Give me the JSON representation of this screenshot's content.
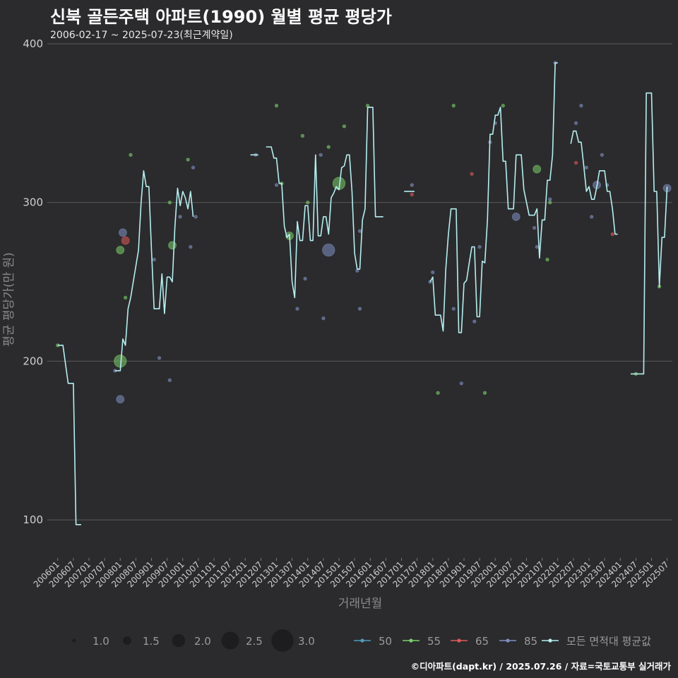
{
  "header": {
    "title": "신북 골든주택 아파트(1990) 월별 평균 평당가",
    "subtitle": "2006-02-17 ~ 2025-07-23(최근계약일)"
  },
  "caption": "©디아파트(dapt.kr) / 2025.07.26 / 자료=국토교통부 실거래가",
  "colors": {
    "background": "#2b2b2d",
    "grid": "#5a5a5a",
    "avg_line": "#b5eef0",
    "s50": "#4f9bbd",
    "s55": "#7bcf6a",
    "s65": "#e05a5a",
    "s85": "#7f8fc2"
  },
  "chart_data": {
    "type": "line",
    "title": "신북 골든주택 아파트(1990) 월별 평균 평당가",
    "xlabel": "거래년월",
    "ylabel": "평균 평당가(만 원)",
    "ylim": [
      76,
      400
    ],
    "yticks": [
      100,
      200,
      300,
      400
    ],
    "xlim_index": [
      -4,
      236
    ],
    "xtick_labels": [
      "200601",
      "200607",
      "200701",
      "200707",
      "200801",
      "200807",
      "200901",
      "200907",
      "201001",
      "201007",
      "201101",
      "201107",
      "201201",
      "201207",
      "201301",
      "201307",
      "201401",
      "201407",
      "201501",
      "201507",
      "201601",
      "201607",
      "201701",
      "201707",
      "201801",
      "201807",
      "201901",
      "201907",
      "202001",
      "202007",
      "202101",
      "202107",
      "202201",
      "202207",
      "202301",
      "202307",
      "202401",
      "202407",
      "202501",
      "202507"
    ],
    "avg_line_segments": [
      [
        [
          0,
          210
        ],
        [
          2,
          210
        ],
        [
          4,
          186
        ],
        [
          6,
          186
        ],
        [
          7,
          97
        ],
        [
          9,
          97
        ]
      ],
      [
        [
          22,
          194
        ],
        [
          24,
          194
        ],
        [
          25,
          214
        ],
        [
          26,
          210
        ],
        [
          27,
          233
        ],
        [
          28,
          240
        ],
        [
          29,
          250
        ],
        [
          30,
          260
        ],
        [
          31,
          270
        ],
        [
          32,
          300
        ],
        [
          33,
          320
        ],
        [
          34,
          310
        ],
        [
          35,
          310
        ],
        [
          36,
          270
        ],
        [
          37,
          233
        ],
        [
          38,
          233
        ],
        [
          39,
          233
        ],
        [
          40,
          255
        ],
        [
          41,
          230
        ],
        [
          42,
          253
        ],
        [
          43,
          253
        ],
        [
          44,
          250
        ],
        [
          45,
          285
        ],
        [
          46,
          309
        ],
        [
          47,
          298
        ],
        [
          48,
          307
        ],
        [
          49,
          303
        ],
        [
          50,
          296
        ],
        [
          51,
          307
        ],
        [
          52,
          291
        ]
      ],
      [
        [
          74,
          330
        ],
        [
          77,
          330
        ]
      ],
      [
        [
          80,
          335
        ],
        [
          82,
          335
        ],
        [
          83,
          328
        ],
        [
          84,
          328
        ],
        [
          85,
          312
        ],
        [
          86,
          312
        ],
        [
          87,
          285
        ],
        [
          88,
          278
        ],
        [
          89,
          280
        ],
        [
          90,
          250
        ],
        [
          91,
          240
        ],
        [
          92,
          288
        ],
        [
          93,
          276
        ],
        [
          94,
          276
        ],
        [
          95,
          298
        ],
        [
          96,
          298
        ],
        [
          97,
          276
        ],
        [
          98,
          276
        ],
        [
          99,
          330
        ],
        [
          100,
          279
        ],
        [
          101,
          279
        ],
        [
          102,
          291
        ],
        [
          103,
          291
        ],
        [
          104,
          280
        ],
        [
          105,
          303
        ],
        [
          106,
          306
        ],
        [
          107,
          310
        ],
        [
          108,
          308
        ],
        [
          109,
          322
        ],
        [
          110,
          323
        ],
        [
          111,
          330
        ],
        [
          112,
          330
        ],
        [
          113,
          307
        ],
        [
          114,
          268
        ],
        [
          115,
          258
        ],
        [
          116,
          258
        ],
        [
          117,
          289
        ],
        [
          118,
          296
        ],
        [
          119,
          360
        ],
        [
          120,
          360
        ],
        [
          121,
          360
        ],
        [
          122,
          291
        ],
        [
          123,
          291
        ],
        [
          124,
          291
        ],
        [
          125,
          291
        ]
      ],
      [
        [
          133,
          307
        ],
        [
          137,
          307
        ]
      ],
      [
        [
          143,
          250
        ],
        [
          144,
          253
        ],
        [
          145,
          229
        ],
        [
          146,
          229
        ],
        [
          147,
          229
        ],
        [
          148,
          219
        ],
        [
          149,
          258
        ],
        [
          150,
          280
        ],
        [
          151,
          296
        ],
        [
          152,
          296
        ],
        [
          153,
          296
        ],
        [
          154,
          218
        ],
        [
          155,
          218
        ],
        [
          156,
          249
        ],
        [
          157,
          251
        ],
        [
          158,
          262
        ],
        [
          159,
          272
        ],
        [
          160,
          272
        ],
        [
          161,
          228
        ],
        [
          162,
          228
        ],
        [
          163,
          263
        ],
        [
          164,
          262
        ],
        [
          165,
          289
        ],
        [
          166,
          343
        ],
        [
          167,
          343
        ],
        [
          168,
          355
        ],
        [
          169,
          355
        ],
        [
          170,
          360
        ],
        [
          171,
          326
        ],
        [
          172,
          326
        ],
        [
          173,
          296
        ],
        [
          174,
          296
        ],
        [
          175,
          296
        ],
        [
          176,
          330
        ],
        [
          177,
          330
        ],
        [
          178,
          330
        ],
        [
          179,
          308
        ],
        [
          180,
          300
        ],
        [
          181,
          292
        ],
        [
          182,
          292
        ],
        [
          183,
          292
        ],
        [
          184,
          296
        ],
        [
          185,
          265
        ],
        [
          186,
          289
        ],
        [
          187,
          289
        ],
        [
          188,
          314
        ],
        [
          189,
          314
        ],
        [
          190,
          330
        ],
        [
          191,
          388
        ],
        [
          192,
          388
        ]
      ],
      [
        [
          197,
          337
        ],
        [
          198,
          345
        ],
        [
          199,
          345
        ],
        [
          200,
          338
        ],
        [
          201,
          338
        ],
        [
          202,
          323
        ],
        [
          203,
          307
        ],
        [
          204,
          310
        ],
        [
          205,
          302
        ],
        [
          206,
          302
        ],
        [
          207,
          310
        ],
        [
          208,
          320
        ],
        [
          209,
          320
        ],
        [
          210,
          320
        ],
        [
          211,
          307
        ],
        [
          212,
          307
        ],
        [
          213,
          296
        ],
        [
          214,
          280
        ],
        [
          215,
          280
        ]
      ],
      [
        [
          220,
          192
        ],
        [
          225,
          192
        ],
        [
          226,
          369
        ],
        [
          228,
          369
        ],
        [
          229,
          307
        ],
        [
          230,
          307
        ],
        [
          231,
          247
        ],
        [
          232,
          278
        ],
        [
          233,
          278
        ],
        [
          234,
          310
        ]
      ]
    ],
    "scatter": [
      {
        "area": 55,
        "i": 0,
        "v": 210,
        "n": 1
      },
      {
        "area": 85,
        "i": 22,
        "v": 194,
        "n": 1
      },
      {
        "area": 55,
        "i": 24,
        "v": 200,
        "n": 2
      },
      {
        "area": 85,
        "i": 24,
        "v": 176,
        "n": 1.5
      },
      {
        "area": 55,
        "i": 24,
        "v": 270,
        "n": 1.5
      },
      {
        "area": 85,
        "i": 25,
        "v": 281,
        "n": 1.5
      },
      {
        "area": 65,
        "i": 26,
        "v": 276,
        "n": 1.5
      },
      {
        "area": 55,
        "i": 26,
        "v": 240,
        "n": 1
      },
      {
        "area": 55,
        "i": 28,
        "v": 330,
        "n": 1
      },
      {
        "area": 85,
        "i": 37,
        "v": 264,
        "n": 1
      },
      {
        "area": 85,
        "i": 39,
        "v": 202,
        "n": 1
      },
      {
        "area": 55,
        "i": 43,
        "v": 300,
        "n": 1
      },
      {
        "area": 55,
        "i": 44,
        "v": 273,
        "n": 1.5
      },
      {
        "area": 85,
        "i": 43,
        "v": 188,
        "n": 1
      },
      {
        "area": 85,
        "i": 47,
        "v": 291,
        "n": 1
      },
      {
        "area": 55,
        "i": 50,
        "v": 327,
        "n": 1
      },
      {
        "area": 85,
        "i": 51,
        "v": 272,
        "n": 1
      },
      {
        "area": 85,
        "i": 52,
        "v": 322,
        "n": 1
      },
      {
        "area": 85,
        "i": 53,
        "v": 291,
        "n": 1
      },
      {
        "area": 85,
        "i": 76,
        "v": 330,
        "n": 1
      },
      {
        "area": 55,
        "i": 84,
        "v": 361,
        "n": 1
      },
      {
        "area": 85,
        "i": 84,
        "v": 311,
        "n": 1
      },
      {
        "area": 55,
        "i": 86,
        "v": 312,
        "n": 1
      },
      {
        "area": 55,
        "i": 89,
        "v": 279,
        "n": 1.5
      },
      {
        "area": 85,
        "i": 92,
        "v": 233,
        "n": 1
      },
      {
        "area": 55,
        "i": 94,
        "v": 342,
        "n": 1
      },
      {
        "area": 85,
        "i": 95,
        "v": 252,
        "n": 1
      },
      {
        "area": 55,
        "i": 96,
        "v": 300,
        "n": 1
      },
      {
        "area": 85,
        "i": 101,
        "v": 330,
        "n": 1
      },
      {
        "area": 85,
        "i": 102,
        "v": 227,
        "n": 1
      },
      {
        "area": 85,
        "i": 104,
        "v": 270,
        "n": 2
      },
      {
        "area": 55,
        "i": 104,
        "v": 335,
        "n": 1
      },
      {
        "area": 55,
        "i": 108,
        "v": 312,
        "n": 2
      },
      {
        "area": 55,
        "i": 110,
        "v": 348,
        "n": 1
      },
      {
        "area": 85,
        "i": 115,
        "v": 257,
        "n": 1
      },
      {
        "area": 85,
        "i": 116,
        "v": 282,
        "n": 1
      },
      {
        "area": 85,
        "i": 116,
        "v": 233,
        "n": 1
      },
      {
        "area": 55,
        "i": 119,
        "v": 361,
        "n": 1
      },
      {
        "area": 85,
        "i": 136,
        "v": 311,
        "n": 1
      },
      {
        "area": 65,
        "i": 136,
        "v": 305,
        "n": 1
      },
      {
        "area": 85,
        "i": 144,
        "v": 256,
        "n": 1
      },
      {
        "area": 85,
        "i": 143,
        "v": 250,
        "n": 1
      },
      {
        "area": 55,
        "i": 146,
        "v": 180,
        "n": 1
      },
      {
        "area": 85,
        "i": 152,
        "v": 233,
        "n": 1
      },
      {
        "area": 55,
        "i": 152,
        "v": 361,
        "n": 1
      },
      {
        "area": 85,
        "i": 155,
        "v": 186,
        "n": 1
      },
      {
        "area": 65,
        "i": 159,
        "v": 318,
        "n": 1
      },
      {
        "area": 85,
        "i": 160,
        "v": 225,
        "n": 1
      },
      {
        "area": 85,
        "i": 162,
        "v": 272,
        "n": 1
      },
      {
        "area": 55,
        "i": 164,
        "v": 180,
        "n": 1
      },
      {
        "area": 85,
        "i": 166,
        "v": 338,
        "n": 1
      },
      {
        "area": 85,
        "i": 168,
        "v": 350,
        "n": 1
      },
      {
        "area": 55,
        "i": 171,
        "v": 361,
        "n": 1
      },
      {
        "area": 85,
        "i": 176,
        "v": 291,
        "n": 1.5
      },
      {
        "area": 85,
        "i": 183,
        "v": 284,
        "n": 1
      },
      {
        "area": 55,
        "i": 184,
        "v": 321,
        "n": 1.5
      },
      {
        "area": 85,
        "i": 184,
        "v": 272,
        "n": 1
      },
      {
        "area": 55,
        "i": 188,
        "v": 264,
        "n": 1
      },
      {
        "area": 55,
        "i": 189,
        "v": 300,
        "n": 1
      },
      {
        "area": 85,
        "i": 189,
        "v": 302,
        "n": 1
      },
      {
        "area": 85,
        "i": 191,
        "v": 388,
        "n": 1
      },
      {
        "area": 85,
        "i": 199,
        "v": 350,
        "n": 1
      },
      {
        "area": 65,
        "i": 199,
        "v": 325,
        "n": 1
      },
      {
        "area": 85,
        "i": 201,
        "v": 361,
        "n": 1
      },
      {
        "area": 85,
        "i": 203,
        "v": 322,
        "n": 1
      },
      {
        "area": 85,
        "i": 205,
        "v": 291,
        "n": 1
      },
      {
        "area": 85,
        "i": 207,
        "v": 311,
        "n": 1.5
      },
      {
        "area": 85,
        "i": 209,
        "v": 330,
        "n": 1
      },
      {
        "area": 85,
        "i": 211,
        "v": 311,
        "n": 1
      },
      {
        "area": 65,
        "i": 213,
        "v": 280,
        "n": 1
      },
      {
        "area": 55,
        "i": 222,
        "v": 192,
        "n": 1
      },
      {
        "area": 55,
        "i": 231,
        "v": 247,
        "n": 1
      },
      {
        "area": 85,
        "i": 234,
        "v": 309,
        "n": 1.5
      }
    ]
  },
  "legend": {
    "size_title": "",
    "sizes": [
      {
        "label": "1.0",
        "value": 1.0
      },
      {
        "label": "1.5",
        "value": 1.5
      },
      {
        "label": "2.0",
        "value": 2.0
      },
      {
        "label": "2.5",
        "value": 2.5
      },
      {
        "label": "3.0",
        "value": 3.0
      }
    ],
    "series": [
      {
        "label": "50",
        "key": "s50"
      },
      {
        "label": "55",
        "key": "s55"
      },
      {
        "label": "65",
        "key": "s65"
      },
      {
        "label": "85",
        "key": "s85"
      },
      {
        "label": "모든 면적대 평균값",
        "key": "avg_line"
      }
    ]
  }
}
